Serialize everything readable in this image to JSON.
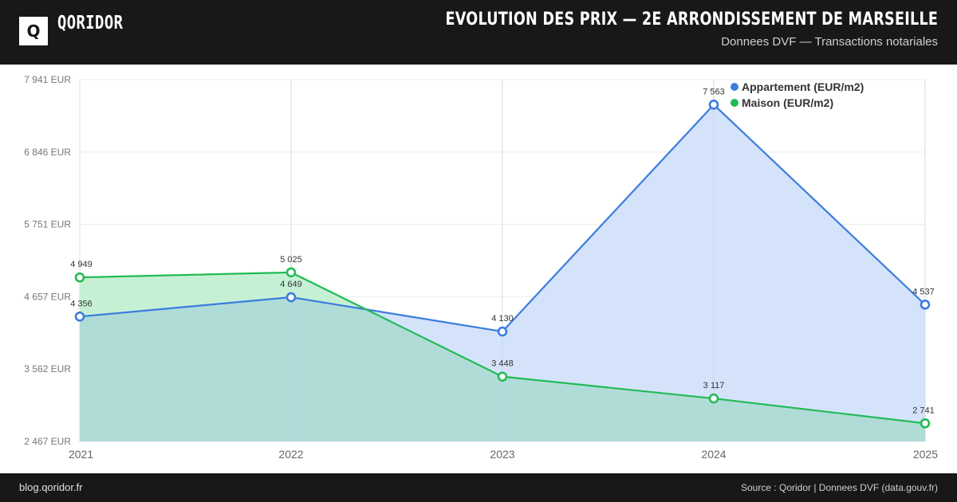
{
  "header": {
    "logo_glyph": "Q",
    "brand": "QORIDOR",
    "title": "EVOLUTION DES PRIX — 2E ARRONDISSEMENT DE MARSEILLE",
    "subtitle": "Donnees DVF — Transactions notariales"
  },
  "footer": {
    "left": "blog.qoridor.fr",
    "right": "Source : Qoridor | Donnees DVF (data.gouv.fr)"
  },
  "colors": {
    "appartement": "#3b7ddd",
    "maison": "#22bb55",
    "appartement_fill": "#d4e3fa",
    "maison_fill": "#c6f0d4",
    "overlap_fill": "#b0dcd8"
  },
  "chart_data": {
    "type": "area",
    "title": "",
    "xlabel": "",
    "ylabel": "",
    "x": [
      "2021",
      "2022",
      "2023",
      "2024",
      "2025"
    ],
    "ylim": [
      2467,
      7941
    ],
    "yticks": [
      2467,
      3562,
      4657,
      5751,
      6846,
      7941
    ],
    "ytick_labels": [
      "2 467 EUR",
      "3 562 EUR",
      "4 657 EUR",
      "5 751 EUR",
      "6 846 EUR",
      "7 941 EUR"
    ],
    "grid": true,
    "legend": "top-right",
    "series": [
      {
        "name": "Appartement (EUR/m2)",
        "values": [
          4356,
          4649,
          4130,
          7563,
          4537
        ],
        "labels": [
          "4 356",
          "4 649",
          "4 130",
          "7 563",
          "4 537"
        ]
      },
      {
        "name": "Maison (EUR/m2)",
        "values": [
          4949,
          5025,
          3448,
          3117,
          2741
        ],
        "labels": [
          "4 949",
          "5 025",
          "3 448",
          "3 117",
          "2 741"
        ]
      }
    ]
  }
}
